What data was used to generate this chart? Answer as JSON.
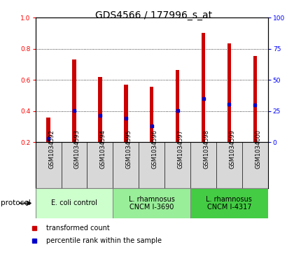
{
  "title": "GDS4566 / 177996_s_at",
  "samples": [
    "GSM1034592",
    "GSM1034593",
    "GSM1034594",
    "GSM1034595",
    "GSM1034596",
    "GSM1034597",
    "GSM1034598",
    "GSM1034599",
    "GSM1034600"
  ],
  "transformed_count": [
    0.36,
    0.73,
    0.62,
    0.57,
    0.555,
    0.665,
    0.905,
    0.835,
    0.755
  ],
  "percentile_rank": [
    0.225,
    0.405,
    0.37,
    0.355,
    0.305,
    0.405,
    0.48,
    0.445,
    0.44
  ],
  "ylim_left": [
    0.2,
    1.0
  ],
  "ylim_right": [
    0,
    100
  ],
  "yticks_left": [
    0.2,
    0.4,
    0.6,
    0.8,
    1.0
  ],
  "yticks_right": [
    0,
    25,
    50,
    75,
    100
  ],
  "bar_bottom": 0.2,
  "bar_width": 0.15,
  "bar_color": "#cc0000",
  "dot_color": "#0000cc",
  "grid_color": "#000000",
  "protocol_groups": [
    {
      "label": "E. coli control",
      "indices": [
        0,
        1,
        2
      ],
      "color": "#ccffcc"
    },
    {
      "label": "L. rhamnosus\nCNCM I-3690",
      "indices": [
        3,
        4,
        5
      ],
      "color": "#99ee99"
    },
    {
      "label": "L. rhamnosus\nCNCM I-4317",
      "indices": [
        6,
        7,
        8
      ],
      "color": "#44cc44"
    }
  ],
  "legend_items": [
    {
      "label": "transformed count",
      "color": "#cc0000"
    },
    {
      "label": "percentile rank within the sample",
      "color": "#0000cc"
    }
  ],
  "title_fontsize": 10,
  "tick_fontsize": 6.5,
  "sample_fontsize": 6,
  "protocol_fontsize": 7,
  "legend_fontsize": 7,
  "protocol_label": "protocol",
  "background_color": "#ffffff"
}
